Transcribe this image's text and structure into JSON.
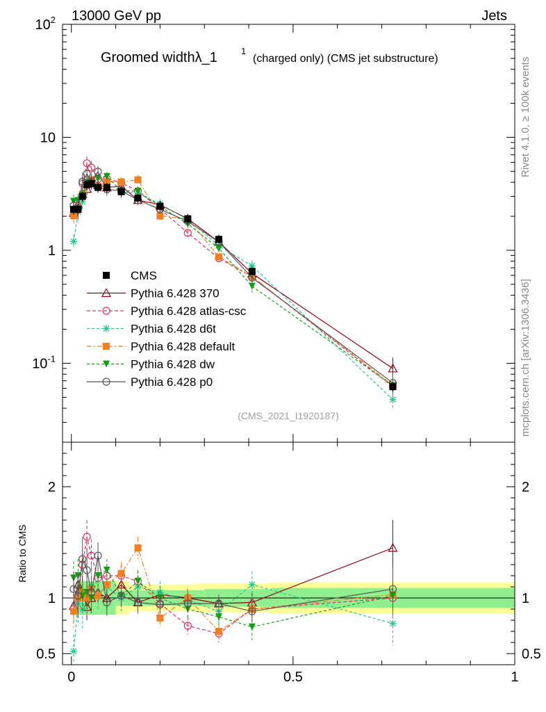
{
  "header": {
    "left": "13000 GeV pp",
    "right": "Jets"
  },
  "title": {
    "main": "Groomed width",
    "lambda": "λ_1",
    "sup": "1",
    "sub": "(charged only) (CMS jet substructure)"
  },
  "side_texts": {
    "rivet": "Rivet 4.1.0, ≥ 100k events",
    "mcplots": "mcplots.cern.ch [arXiv:1306.3436]"
  },
  "analysis_id": "(CMS_2021_I1920187)",
  "ratio_ylabel": "Ratio to CMS",
  "colors": {
    "cms": "#000000",
    "p370": "#8b0015",
    "atlas": "#e03060",
    "d6t": "#20c890",
    "default": "#f08020",
    "dw": "#10a010",
    "p0": "#555555",
    "band_green": "#90f090",
    "band_yellow": "#ffff99"
  },
  "chart_data": {
    "type": "line",
    "x": [
      0.005,
      0.015,
      0.025,
      0.035,
      0.045,
      0.06,
      0.08,
      0.1125,
      0.15,
      0.2,
      0.2625,
      0.3325,
      0.4075,
      0.725
    ],
    "main_axes": {
      "xlim": [
        -0.02,
        1.0
      ],
      "ylim": [
        0.02,
        100
      ],
      "yscale": "log",
      "ytick_labels": [
        "10^2",
        "10",
        "1",
        "10^-1"
      ]
    },
    "ratio_axes": {
      "ylim": [
        0.4,
        2.4
      ],
      "ytick_labels": [
        "0.5",
        "1",
        "2"
      ],
      "xtick_labels": [
        "0",
        "0.5",
        "1"
      ]
    },
    "reference": {
      "name": "CMS",
      "values": [
        2.3,
        2.3,
        3.0,
        3.8,
        3.9,
        3.6,
        3.6,
        3.3,
        2.9,
        2.45,
        1.9,
        1.25,
        0.65,
        0.062
      ],
      "band_green": [
        [
          0.01,
          0.1,
          0.15
        ],
        [
          0.1,
          0.3,
          0.07
        ],
        [
          0.3,
          0.45,
          0.08
        ],
        [
          0.45,
          1.0,
          0.09
        ]
      ],
      "band_yellow": [
        [
          0.01,
          0.13,
          0.15
        ],
        [
          0.13,
          0.28,
          0.12
        ],
        [
          0.28,
          0.45,
          0.13
        ],
        [
          0.45,
          1.0,
          0.14
        ]
      ]
    },
    "series": [
      {
        "key": "p370",
        "name": "Pythia 6.428 370",
        "marker": "tri-open",
        "dash": "",
        "ratio": [
          0.93,
          1.12,
          1.05,
          0.92,
          1.0,
          1.05,
          1.0,
          1.12,
          0.96,
          1.03,
          1.0,
          0.95,
          0.96,
          1.45
        ],
        "err": [
          0.07,
          0.1,
          0.12,
          0.12,
          0.12,
          0.1,
          0.1,
          0.1,
          0.08,
          0.08,
          0.08,
          0.08,
          0.1,
          0.25
        ]
      },
      {
        "key": "atlas",
        "name": "Pythia 6.428 atlas-csc",
        "marker": "circle-open",
        "dash": "5,3",
        "ratio": [
          0.9,
          1.02,
          1.3,
          1.55,
          1.38,
          1.18,
          1.2,
          1.2,
          1.15,
          0.95,
          0.75,
          0.68,
          0.9,
          1.0
        ],
        "err": [
          0.15,
          0.15,
          0.15,
          0.15,
          0.15,
          0.1,
          0.1,
          0.1,
          0.1,
          0.08,
          0.08,
          0.08,
          0.1,
          0.2
        ]
      },
      {
        "key": "d6t",
        "name": "Pythia 6.428 d6t",
        "marker": "star",
        "dash": "4,3",
        "ratio": [
          0.52,
          0.95,
          0.9,
          1.05,
          1.1,
          1.02,
          1.1,
          1.0,
          1.1,
          1.05,
          0.98,
          0.88,
          1.12,
          0.77
        ],
        "err": [
          0.15,
          0.2,
          0.2,
          0.2,
          0.2,
          0.12,
          0.12,
          0.12,
          0.1,
          0.1,
          0.1,
          0.1,
          0.12,
          0.2
        ]
      },
      {
        "key": "default",
        "name": "Pythia 6.428 default",
        "marker": "square-fill",
        "dash": "7,3,2,3",
        "ratio": [
          0.88,
          1.0,
          1.05,
          1.0,
          1.08,
          1.02,
          1.12,
          1.22,
          1.45,
          0.82,
          1.0,
          0.7,
          0.9,
          1.03
        ],
        "err": [
          0.15,
          0.15,
          0.15,
          0.15,
          0.15,
          0.1,
          0.1,
          0.1,
          0.1,
          0.08,
          0.08,
          0.08,
          0.1,
          0.2
        ]
      },
      {
        "key": "dw",
        "name": "Pythia 6.428 dw",
        "marker": "tri-down-fill",
        "dash": "4,3",
        "ratio": [
          1.18,
          1.2,
          1.02,
          1.05,
          1.0,
          1.2,
          1.25,
          1.02,
          1.15,
          1.0,
          0.9,
          0.83,
          0.74,
          1.02
        ],
        "err": [
          0.15,
          0.15,
          0.15,
          0.15,
          0.15,
          0.1,
          0.1,
          0.1,
          0.1,
          0.08,
          0.08,
          0.08,
          0.12,
          0.2
        ]
      },
      {
        "key": "p0",
        "name": "Pythia 6.428 p0",
        "marker": "circle-open",
        "dash": "",
        "ratio": [
          1.08,
          1.02,
          1.35,
          1.25,
          1.05,
          1.38,
          0.96,
          1.02,
          0.96,
          0.94,
          0.95,
          0.95,
          0.88,
          1.08
        ],
        "err": [
          0.15,
          0.2,
          0.2,
          0.2,
          0.15,
          0.12,
          0.12,
          0.1,
          0.1,
          0.08,
          0.08,
          0.08,
          0.1,
          0.2
        ]
      }
    ]
  }
}
